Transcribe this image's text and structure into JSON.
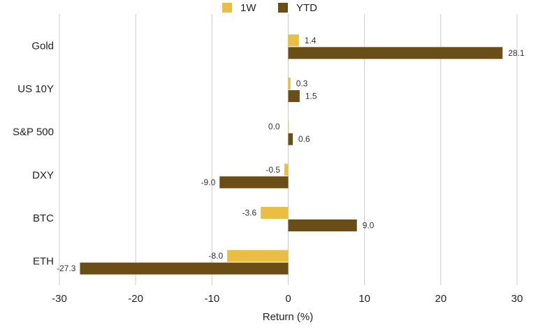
{
  "chart_data": {
    "type": "bar",
    "orientation": "horizontal",
    "categories": [
      "Gold",
      "US 10Y",
      "S&P 500",
      "DXY",
      "BTC",
      "ETH"
    ],
    "series": [
      {
        "name": "1W",
        "values": [
          1.4,
          0.3,
          0.0,
          -0.5,
          -3.6,
          -8.0
        ],
        "color": "#E8BE43"
      },
      {
        "name": "YTD",
        "values": [
          28.1,
          1.5,
          0.6,
          -9.0,
          9.0,
          -27.3
        ],
        "color": "#6B4E16"
      }
    ],
    "value_labels": [
      [
        "1.4",
        "0.3",
        "0.0",
        "-0.5",
        "-3.6",
        "-8.0"
      ],
      [
        "28.1",
        "1.5",
        "0.6",
        "-9.0",
        "9.0",
        "-27.3"
      ]
    ],
    "xlabel": "Return (%)",
    "xlim": [
      -30,
      30
    ],
    "xticks": [
      -30,
      -20,
      -10,
      0,
      10,
      20,
      30
    ],
    "xtick_labels": [
      "-30",
      "-20",
      "-10",
      "0",
      "10",
      "20",
      "30"
    ],
    "grid": "vertical",
    "legend": "top-center",
    "gridline_color": "#CCCCCC"
  }
}
